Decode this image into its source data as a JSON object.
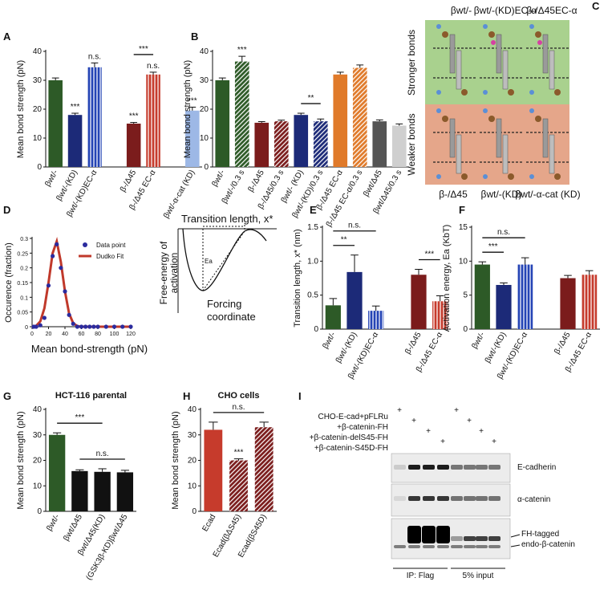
{
  "chart_data": [
    {
      "type": "bar",
      "panel": "A",
      "ylabel": "Mean bond strength (pN)",
      "ylim": [
        0,
        40
      ],
      "yticks": [
        0,
        10,
        20,
        30,
        40
      ],
      "categories": [
        "βwt/-",
        "βwt/-(KD)",
        "βwt/-(KD)EC-α",
        null,
        "β-/Δ45",
        "β-/Δ45 EC-α",
        null,
        "βwt/-α-cat (KD)"
      ],
      "values": [
        30,
        18,
        34.5,
        null,
        15,
        32,
        null,
        19.5
      ],
      "errors": [
        0.8,
        0.6,
        1.5,
        null,
        0.4,
        0.8,
        null,
        1.2
      ],
      "colors": [
        "#2d5a27",
        "#1c2a78",
        "#2444b5",
        null,
        "#7b1c1c",
        "#c63b2c",
        null,
        "#9db8e6"
      ],
      "patterns": [
        null,
        null,
        "vertical",
        null,
        null,
        "vertical",
        null,
        null
      ],
      "annotations": [
        {
          "text": "***",
          "bar": 1
        },
        {
          "text": "n.s.",
          "bar": 2
        },
        {
          "text": "***",
          "bar": 4
        },
        {
          "text": "n.s.",
          "bar": 5
        },
        {
          "text": "***",
          "from": 4,
          "to": 5
        },
        {
          "text": "***",
          "bar": 7
        }
      ]
    },
    {
      "type": "bar",
      "panel": "B",
      "ylabel": "Mean bond strength (pN)",
      "ylim": [
        0,
        40
      ],
      "yticks": [
        0,
        10,
        20,
        30,
        40
      ],
      "categories": [
        "βwt/-",
        "βwt/-/0.3 s",
        "β-/Δ45",
        "β-/Δ45/0.3 s",
        "βwt/- (KD)",
        "βwt/-(KD)/0.3 s",
        "β-/Δ45 EC-α",
        "β-/Δ45 EC-α/0.3 s",
        "βwt/Δ45",
        "βwt/Δ45/0.3 s"
      ],
      "values": [
        30,
        36.5,
        15.3,
        15.8,
        18,
        15.8,
        32,
        34.3,
        15.8,
        14.3
      ],
      "errors": [
        0.8,
        1.8,
        0.4,
        0.4,
        0.6,
        0.8,
        0.8,
        1,
        0.5,
        0.6
      ],
      "colors": [
        "#2d5a27",
        "#2d5a27",
        "#7b1c1c",
        "#7b1c1c",
        "#1c2a78",
        "#1c2a78",
        "#e07a2a",
        "#e07a2a",
        "#555555",
        "#cfcfcf"
      ],
      "patterns": [
        null,
        "diagonal",
        null,
        "diagonal",
        null,
        "diagonal",
        null,
        "diagonal",
        null,
        null
      ],
      "annotations": [
        {
          "text": "***",
          "bar": 1
        },
        {
          "text": "**",
          "from": 4,
          "to": 5
        }
      ]
    },
    {
      "type": "scatter",
      "panel": "D",
      "ylabel": "Occurence (fraction)",
      "xlabel": "Mean bond-strength (pN)",
      "xlim": [
        0,
        120
      ],
      "xticks": [
        0,
        20,
        40,
        60,
        80,
        100,
        120
      ],
      "ylim": [
        0,
        0.3
      ],
      "yticks": [
        0,
        0.05,
        0.1,
        0.15,
        0.2,
        0.25,
        0.3
      ],
      "series": [
        {
          "name": "Data point",
          "color": "#2b2b9e",
          "mark": "point",
          "x": [
            2,
            5,
            10,
            15,
            20,
            25,
            30,
            35,
            40,
            45,
            50,
            55,
            60,
            65,
            70,
            75,
            80,
            90,
            100,
            110,
            120
          ],
          "values": [
            0,
            0,
            0.005,
            0.03,
            0.14,
            0.24,
            0.28,
            0.2,
            0.12,
            0.04,
            0.01,
            0,
            0,
            0,
            0,
            0,
            0,
            0,
            0,
            0,
            0
          ]
        },
        {
          "name": "Dudko Fit",
          "color": "#c0392b",
          "mark": "line",
          "x": [
            0,
            5,
            10,
            15,
            20,
            25,
            30,
            35,
            40,
            45,
            50,
            55,
            60,
            70,
            120
          ],
          "values": [
            0,
            0.003,
            0.018,
            0.063,
            0.15,
            0.25,
            0.29,
            0.22,
            0.12,
            0.045,
            0.012,
            0.002,
            0,
            0,
            0
          ]
        }
      ]
    },
    {
      "type": "bar",
      "panel": "E",
      "ylabel": "Transition length, x* (nm)",
      "ylim": [
        0,
        1.5
      ],
      "yticks": [
        0,
        0.5,
        {
          "value": 1,
          "label": "1.0"
        },
        1.5
      ],
      "categories": [
        "βwt/-",
        "βwt/-(KD)",
        "βwt/-(KD)EC-α",
        null,
        "β-/Δ45",
        "β-/Δ45 EC-α"
      ],
      "values": [
        0.35,
        0.84,
        0.27,
        null,
        0.8,
        0.41
      ],
      "errors": [
        0.1,
        0.25,
        0.07,
        null,
        0.08,
        0.08
      ],
      "colors": [
        "#2d5a27",
        "#1c2a78",
        "#2444b5",
        null,
        "#7b1c1c",
        "#c63b2c"
      ],
      "patterns": [
        null,
        null,
        "vertical",
        null,
        null,
        "vertical"
      ],
      "annotations": [
        {
          "text": "**",
          "from": 0,
          "to": 1
        },
        {
          "text": "n.s.",
          "from": 0,
          "to": 2
        },
        {
          "text": "***",
          "from": 4,
          "to": 5
        }
      ]
    },
    {
      "type": "bar",
      "panel": "F",
      "ylabel": "Activation energy, Ea (KbT)",
      "ylim": [
        0,
        15
      ],
      "yticks": [
        0,
        5,
        10,
        15
      ],
      "categories": [
        "βwt/-",
        "βwt/-(KD)",
        "βwt/-(KD)EC-α",
        null,
        "β-/Δ45",
        "β-/Δ45 EC-α"
      ],
      "values": [
        9.5,
        6.5,
        9.5,
        null,
        7.5,
        8
      ],
      "errors": [
        0.4,
        0.3,
        1,
        null,
        0.4,
        0.6
      ],
      "colors": [
        "#2d5a27",
        "#1c2a78",
        "#2444b5",
        null,
        "#7b1c1c",
        "#c63b2c"
      ],
      "patterns": [
        null,
        null,
        "vertical",
        null,
        null,
        "vertical"
      ],
      "annotations": [
        {
          "text": "***",
          "from": 0,
          "to": 1
        },
        {
          "text": "n.s.",
          "from": 0,
          "to": 2
        }
      ]
    },
    {
      "type": "bar",
      "panel": "G",
      "title": "HCT-116 parental",
      "ylabel": "Mean bond strength (pN)",
      "ylim": [
        0,
        40
      ],
      "yticks": [
        0,
        10,
        20,
        30,
        40
      ],
      "categories": [
        "βwt/-",
        "βwt/Δ45",
        "βwt/Δ45(KD)",
        "(GSK3β-KD)βwt/Δ45"
      ],
      "values": [
        30,
        15.8,
        15.5,
        15.3
      ],
      "errors": [
        0.8,
        0.5,
        1.2,
        0.8
      ],
      "colors": [
        "#2d5a27",
        "#111111",
        "#111111",
        "#111111"
      ],
      "patterns": [
        null,
        null,
        null,
        null
      ],
      "annotations": [
        {
          "text": "***",
          "from": 0,
          "to": 2
        },
        {
          "text": "n.s.",
          "from": 1,
          "to": 3
        }
      ]
    },
    {
      "type": "bar",
      "panel": "H",
      "title": "CHO cells",
      "ylabel": "Mean bond strength (pN)",
      "ylim": [
        0,
        40
      ],
      "yticks": [
        0,
        10,
        20,
        30,
        40
      ],
      "categories": [
        "Ecad",
        "Ecad(βΔS45)",
        "Ecad(βS45D)"
      ],
      "values": [
        32,
        20,
        33
      ],
      "errors": [
        3,
        0.6,
        2
      ],
      "colors": [
        "#c63b2c",
        "#7b1c1c",
        "#7b1c1c"
      ],
      "patterns": [
        null,
        "diagonal",
        "diagonal"
      ],
      "annotations": [
        {
          "text": "***",
          "bar": 1
        },
        {
          "text": "n.s.",
          "from": 0,
          "to": 2
        }
      ]
    }
  ],
  "diagram_c": {
    "panel": "C",
    "top_labels": [
      "βwt/-",
      "βwt/-(KD)EC-α",
      "β-/Δ45EC-α"
    ],
    "row_labels": [
      "Stronger bonds",
      "Weaker bonds"
    ],
    "bottom_labels": [
      "β-/Δ45",
      "βwt/-(KD)",
      "βwt/-α-cat (KD)"
    ]
  },
  "energy_diagram": {
    "title": "Transition length, x*",
    "ylabel": [
      "Free-energy of",
      "activation"
    ],
    "barrier": "Ea",
    "xlabel": [
      "Forcing",
      "coordinate"
    ]
  },
  "blot": {
    "panel": "I",
    "conditions": [
      {
        "label": "CHO-E-cad+pFLRu",
        "marks": [
          "+",
          null,
          null,
          null,
          "+",
          null,
          null,
          null
        ]
      },
      {
        "label": "+β-catenin-FH",
        "marks": [
          null,
          "+",
          null,
          null,
          null,
          "+",
          null,
          null
        ]
      },
      {
        "label": "+β-catenin-delS45-FH",
        "marks": [
          null,
          null,
          "+",
          null,
          null,
          null,
          "+",
          null
        ]
      },
      {
        "label": "+β-catenin-S45D-FH",
        "marks": [
          null,
          null,
          null,
          "+",
          null,
          null,
          null,
          "+"
        ]
      }
    ],
    "bands": [
      "E-cadherin",
      "α-catenin"
    ],
    "tag_labels": [
      "FH-tagged",
      "endo-β-catenin"
    ],
    "groups": [
      "IP: Flag",
      "5% input"
    ]
  }
}
